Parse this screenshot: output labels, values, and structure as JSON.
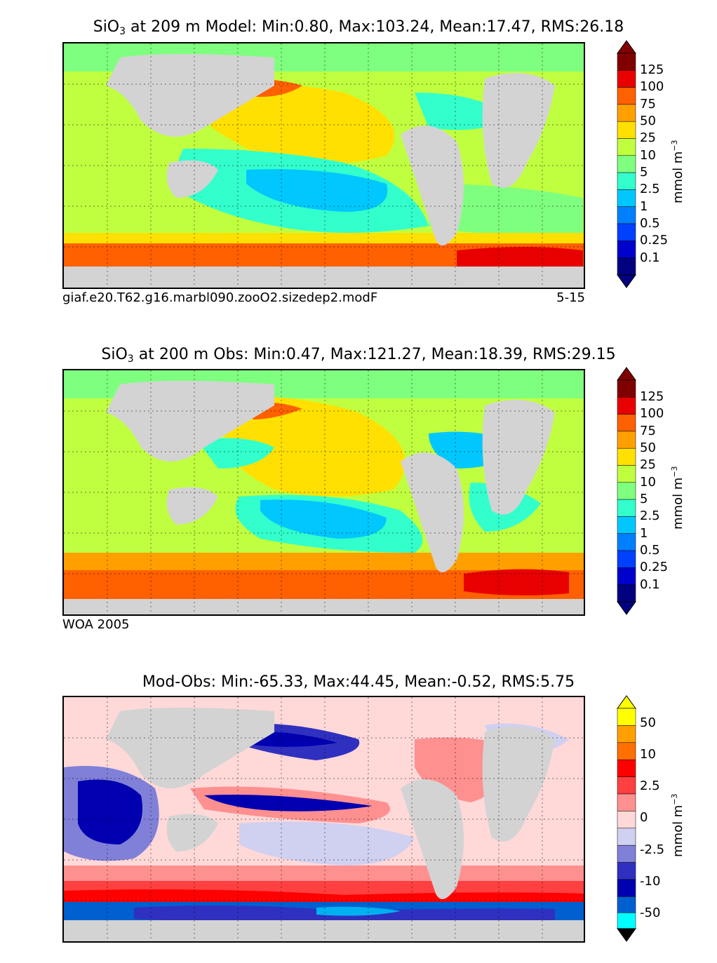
{
  "panels": [
    {
      "title": {
        "prefix": "SiO",
        "sub": "3",
        "rest": " at 209 m Model: Min:0.80, Max:103.24, Mean:17.47, RMS:26.18"
      },
      "left_note": "giaf.e20.T62.g16.marbl090.zooO2.sizedep2.modF",
      "right_note": "5-15",
      "colorbar": {
        "unit": "mmol m",
        "unit_exp": "−3",
        "ticks": [
          "125",
          "100",
          "75",
          "50",
          "25",
          "10",
          "5",
          "2.5",
          "1",
          "0.5",
          "0.25",
          "0.1"
        ],
        "colors": [
          "#000080",
          "#0000cd",
          "#0040ff",
          "#0080ff",
          "#00c8ff",
          "#33ffcc",
          "#7fff7f",
          "#c0ff40",
          "#ffe000",
          "#ffa000",
          "#ff6000",
          "#e80000",
          "#800000"
        ]
      }
    },
    {
      "title": {
        "prefix": "SiO",
        "sub": "3",
        "rest": " at 200 m Obs: Min:0.47, Max:121.27, Mean:18.39, RMS:29.15"
      },
      "left_note": "WOA 2005",
      "right_note": "",
      "colorbar": {
        "unit": "mmol m",
        "unit_exp": "−3",
        "ticks": [
          "125",
          "100",
          "75",
          "50",
          "25",
          "10",
          "5",
          "2.5",
          "1",
          "0.5",
          "0.25",
          "0.1"
        ],
        "colors": [
          "#000080",
          "#0000cd",
          "#0040ff",
          "#0080ff",
          "#00c8ff",
          "#33ffcc",
          "#7fff7f",
          "#c0ff40",
          "#ffe000",
          "#ffa000",
          "#ff6000",
          "#e80000",
          "#800000"
        ]
      }
    },
    {
      "title": {
        "prefix": "Mod-Obs: Min:-65.33, Max:44.45, Mean:-0.52, RMS:5.75",
        "sub": "",
        "rest": ""
      },
      "left_note": "",
      "right_note": "",
      "colorbar": {
        "unit": "mmol m",
        "unit_exp": "−3",
        "ticks": [
          "50",
          "10",
          "2.5",
          "0",
          "-2.5",
          "-10",
          "-50"
        ],
        "colors": [
          "#00ffff",
          "#00b0f0",
          "#0060d0",
          "#0000b0",
          "#3030c0",
          "#8080d8",
          "#d0d0f0",
          "#ffd8d8",
          "#ff9090",
          "#ff4040",
          "#ff0000",
          "#ff7000",
          "#ffa000",
          "#ffff00"
        ]
      }
    }
  ]
}
